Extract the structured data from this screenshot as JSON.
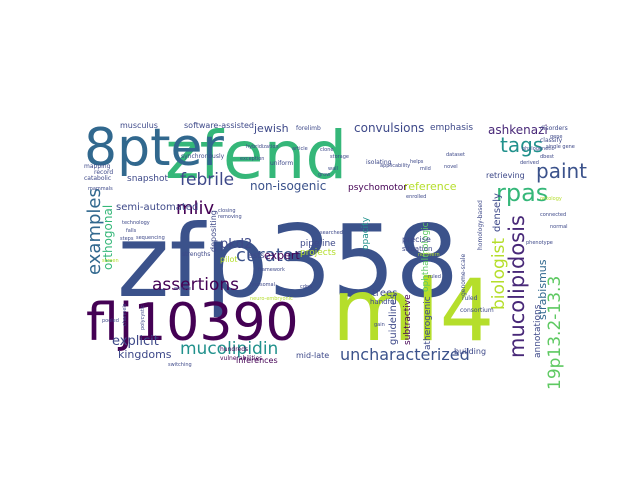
{
  "colors": {
    "background": "#ffffff",
    "dark_purple": "#440154",
    "indigo": "#3b528b",
    "blue": "#31688e",
    "teal": "#21918c",
    "green": "#5ec962",
    "lime": "#b5de2b",
    "yellow": "#fde725"
  },
  "words": [
    {
      "text": "zfp358",
      "color": "#3b528b"
    },
    {
      "text": "zfend",
      "color": "#35b779"
    },
    {
      "text": "ml4",
      "color": "#b5de2b"
    },
    {
      "text": "8pter",
      "color": "#31688e"
    },
    {
      "text": "flj10390",
      "color": "#440154"
    },
    {
      "text": "mucolipidosis",
      "color": "#482878"
    },
    {
      "text": "examples",
      "color": "#31688e"
    },
    {
      "text": "biologist",
      "color": "#b5de2b"
    },
    {
      "text": "rpas",
      "color": "#35b779"
    },
    {
      "text": "paint",
      "color": "#3b528b"
    },
    {
      "text": "tags",
      "color": "#21918c"
    },
    {
      "text": "curators",
      "color": "#3b528b"
    },
    {
      "text": "assertions",
      "color": "#440154"
    },
    {
      "text": "mucolipidin",
      "color": "#21918c"
    },
    {
      "text": "uncharacterized",
      "color": "#3b528b"
    },
    {
      "text": "19p13.2-13.3",
      "color": "#5ec962"
    },
    {
      "text": "febrile",
      "color": "#3e4989"
    },
    {
      "text": "mliv",
      "color": "#440154"
    },
    {
      "text": "convulsions",
      "color": "#3e4989"
    },
    {
      "text": "ashkenazi",
      "color": "#482878"
    },
    {
      "text": "jewish",
      "color": "#3e4989"
    },
    {
      "text": "orthogonal",
      "color": "#35b779"
    },
    {
      "text": "non-isogenic",
      "color": "#3b528b"
    },
    {
      "text": "expert",
      "color": "#440154"
    },
    {
      "text": "pkd2",
      "color": "#3e4989"
    },
    {
      "text": "explicit",
      "color": "#3e4989"
    },
    {
      "text": "kingdoms",
      "color": "#3e4989"
    },
    {
      "text": "reference",
      "color": "#b5de2b"
    },
    {
      "text": "strabismus",
      "color": "#31688e"
    },
    {
      "text": "semi-automated",
      "color": "#3e4989"
    },
    {
      "text": "snapshot",
      "color": "#3e4989"
    },
    {
      "text": "psychomotor",
      "color": "#440154"
    },
    {
      "text": "pipeline",
      "color": "#3e4989"
    },
    {
      "text": "projects",
      "color": "#b5de2b"
    },
    {
      "text": "trees",
      "color": "#3e4989"
    },
    {
      "text": "guidelines",
      "color": "#3e4989"
    },
    {
      "text": "subtractive",
      "color": "#440154"
    },
    {
      "text": "atherogenic",
      "color": "#3e4989"
    },
    {
      "text": "annotations",
      "color": "#3e4989"
    },
    {
      "text": "ophthalmologic",
      "color": "#5ec962"
    },
    {
      "text": "densely",
      "color": "#3e4989"
    },
    {
      "text": "emphasis",
      "color": "#3e4989"
    },
    {
      "text": "software-assisted",
      "color": "#3e4989"
    },
    {
      "text": "musculus",
      "color": "#3e4989"
    },
    {
      "text": "retrieving",
      "color": "#3e4989"
    },
    {
      "text": "building",
      "color": "#3e4989"
    },
    {
      "text": "mid-late",
      "color": "#3e4989"
    },
    {
      "text": "inferences",
      "color": "#440154"
    },
    {
      "text": "depositing",
      "color": "#3e4989"
    },
    {
      "text": "opacity",
      "color": "#21918c"
    },
    {
      "text": "precise",
      "color": "#3e4989"
    },
    {
      "text": "situation",
      "color": "#3e4989"
    },
    {
      "text": "ests",
      "color": "#3e4989"
    },
    {
      "text": "pilot",
      "color": "#b5de2b"
    },
    {
      "text": "handful",
      "color": "#3e4989"
    },
    {
      "text": "synchronously",
      "color": "#3e4989"
    },
    {
      "text": "uniform",
      "color": "#3e4989"
    },
    {
      "text": "hundreds",
      "color": "#440154"
    },
    {
      "text": "vulnerabilities",
      "color": "#440154"
    },
    {
      "text": "strengths",
      "color": "#3e4989"
    },
    {
      "text": "classify",
      "color": "#3e4989"
    },
    {
      "text": "record",
      "color": "#3e4989"
    },
    {
      "text": "mapping",
      "color": "#3e4989"
    },
    {
      "text": "catabolic",
      "color": "#3e4989"
    },
    {
      "text": "ruled",
      "color": "#3e4989"
    },
    {
      "text": "consortium",
      "color": "#3e4989"
    },
    {
      "text": "homology-based",
      "color": "#3e4989"
    },
    {
      "text": "genome-scale",
      "color": "#3e4989"
    },
    {
      "text": "disorders",
      "color": "#3e4989"
    },
    {
      "text": "isolating",
      "color": "#3e4989"
    },
    {
      "text": "forelimb",
      "color": "#3e4989"
    },
    {
      "text": "hybridization",
      "color": "#3e4989"
    },
    {
      "text": "exception",
      "color": "#3e4989"
    },
    {
      "text": "ontology",
      "color": "#b5de2b"
    },
    {
      "text": "dbest",
      "color": "#3e4989"
    },
    {
      "text": "cdna",
      "color": "#3e4989"
    },
    {
      "text": "clone",
      "color": "#3e4989"
    },
    {
      "text": "falls",
      "color": "#3e4989"
    },
    {
      "text": "technology",
      "color": "#3e4989"
    },
    {
      "text": "closing",
      "color": "#3e4989"
    },
    {
      "text": "removing",
      "color": "#3e4989"
    },
    {
      "text": "searched",
      "color": "#3e4989"
    },
    {
      "text": "enrolled",
      "color": "#3e4989"
    },
    {
      "text": "northern",
      "color": "#b5de2b"
    },
    {
      "text": "pooled",
      "color": "#3e4989"
    },
    {
      "text": "neuro-embryonic",
      "color": "#b5de2b"
    },
    {
      "text": "phylogenetic",
      "color": "#3e4989"
    },
    {
      "text": "applicability",
      "color": "#3e4989"
    },
    {
      "text": "helps",
      "color": "#3e4989"
    },
    {
      "text": "storage",
      "color": "#3e4989"
    },
    {
      "text": "article",
      "color": "#3e4989"
    },
    {
      "text": "wall",
      "color": "#3e4989"
    },
    {
      "text": "framework",
      "color": "#3e4989"
    },
    {
      "text": "steps",
      "color": "#3e4989"
    },
    {
      "text": "sequencing",
      "color": "#3e4989"
    },
    {
      "text": "screen",
      "color": "#b5de2b"
    },
    {
      "text": "polycystic",
      "color": "#3e4989"
    },
    {
      "text": "channels",
      "color": "#3e4989"
    },
    {
      "text": "lysosomal",
      "color": "#3e4989"
    },
    {
      "text": "connected",
      "color": "#3e4989"
    },
    {
      "text": "enable",
      "color": "#3e4989"
    },
    {
      "text": "switching",
      "color": "#3e4989"
    },
    {
      "text": "normal",
      "color": "#3e4989"
    },
    {
      "text": "gene",
      "color": "#3e4989"
    },
    {
      "text": "mammals",
      "color": "#3e4989"
    },
    {
      "text": "single gene",
      "color": "#3e4989"
    },
    {
      "text": "derived",
      "color": "#3e4989"
    },
    {
      "text": "dataset",
      "color": "#3e4989"
    },
    {
      "text": "grow",
      "color": "#3e4989"
    },
    {
      "text": "mild",
      "color": "#3e4989"
    },
    {
      "text": "ruled",
      "color": "#3e4989"
    },
    {
      "text": "phenotype",
      "color": "#3e4989"
    },
    {
      "text": "novel",
      "color": "#3e4989"
    },
    {
      "text": "gain",
      "color": "#3e4989"
    }
  ]
}
